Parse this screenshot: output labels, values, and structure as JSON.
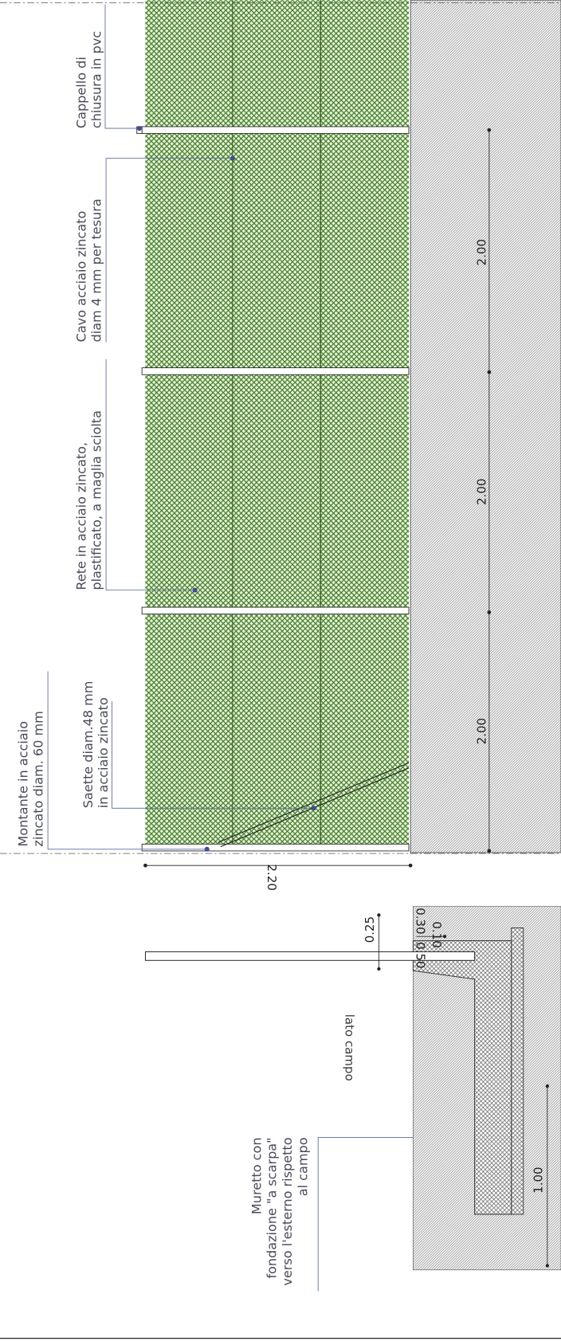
{
  "labels": [
    {
      "lines": [
        "Cappello di",
        "chiusura in pvc"
      ]
    },
    {
      "lines": [
        "Cavo acciaio zincato",
        "diam 4 mm per tesura"
      ]
    },
    {
      "lines": [
        "Rete in acciaio zincato,",
        "plastificato, a maglia sciolta"
      ]
    },
    {
      "lines": [
        "Montante in acciaio",
        "zincato diam. 60 mm"
      ]
    },
    {
      "lines": [
        "Saette diam.48 mm",
        "in acciaio zincato"
      ]
    },
    {
      "lines": [
        "Muretto con",
        "fondazione \"a scarpa\"",
        "verso l'esterno rispetto",
        "al campo"
      ]
    }
  ],
  "dimensions": {
    "spans": [
      "2.00",
      "2.00",
      "2.00"
    ],
    "height": "2.20",
    "wall_top": "0.25",
    "depths": [
      "0.50",
      "0.30",
      "0.10"
    ],
    "footing": "1.00"
  },
  "side_note": "lato campo"
}
